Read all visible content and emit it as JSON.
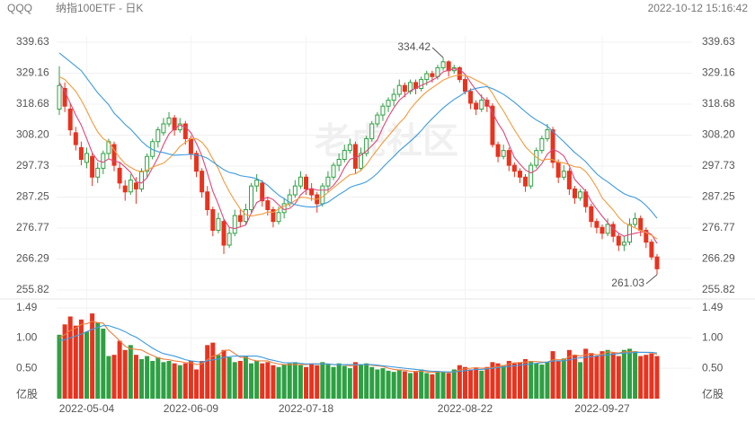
{
  "header": {
    "symbol": "QQQ",
    "name": "纳指100ETF - 日K",
    "timestamp": "2022-10-12 15:16:42"
  },
  "watermark": "老虎社区",
  "chart_data": {
    "type": "candlestick",
    "categories": [
      null,
      null,
      null,
      null,
      null,
      "2022-05-04",
      null,
      null,
      null,
      null,
      null,
      null,
      null,
      null,
      null,
      null,
      null,
      null,
      null,
      null,
      null,
      null,
      null,
      null,
      "2022-06-09",
      null,
      null,
      null,
      null,
      null,
      null,
      null,
      null,
      null,
      null,
      null,
      null,
      null,
      null,
      null,
      null,
      null,
      null,
      null,
      null,
      "2022-07-18",
      null,
      null,
      null,
      null,
      null,
      null,
      null,
      null,
      null,
      null,
      null,
      null,
      null,
      null,
      null,
      null,
      null,
      null,
      null,
      null,
      null,
      null,
      null,
      null,
      null,
      null,
      null,
      null,
      "2022-08-22",
      null,
      null,
      null,
      null,
      null,
      null,
      null,
      null,
      null,
      null,
      null,
      null,
      null,
      null,
      null,
      null,
      null,
      null,
      null,
      null,
      null,
      null,
      null,
      null,
      "2022-09-27",
      null,
      null,
      null,
      null,
      null,
      null,
      null,
      null,
      null,
      null
    ],
    "open": [
      317,
      324,
      317,
      309,
      304,
      299,
      301,
      294,
      297,
      302,
      305,
      297,
      291,
      289,
      292,
      290,
      296,
      301,
      306,
      309,
      312,
      314,
      310,
      312,
      307,
      302,
      296,
      289,
      283,
      276,
      279,
      271,
      275,
      281,
      279,
      283,
      291,
      292,
      286,
      283,
      279,
      282,
      285,
      288,
      291,
      294,
      290,
      288,
      285,
      291,
      294,
      298,
      300,
      303,
      305,
      297,
      302,
      307,
      312,
      315,
      318,
      320,
      322,
      325,
      323,
      326,
      324,
      327,
      329,
      328,
      331,
      333,
      330,
      331,
      327,
      323,
      319,
      317,
      320,
      318,
      305,
      301,
      303,
      298,
      296,
      294,
      291,
      298,
      303,
      307,
      310,
      299,
      294,
      296,
      290,
      287,
      289,
      284,
      279,
      277,
      275,
      278,
      274,
      271,
      272,
      278,
      280,
      276,
      272,
      267
    ],
    "high": [
      331.5,
      326,
      319,
      311,
      306,
      304,
      302,
      299,
      303,
      307,
      306,
      299,
      293,
      295,
      294,
      297,
      302,
      307,
      311,
      314,
      316,
      315,
      314,
      313,
      308,
      303,
      297,
      291,
      284,
      282,
      280,
      277,
      283,
      283,
      285,
      292,
      295,
      293,
      287,
      284,
      284,
      287,
      290,
      293,
      296,
      295,
      292,
      289,
      292,
      296,
      299,
      302,
      305,
      307,
      306,
      304,
      308,
      313,
      316,
      319,
      321,
      324,
      327,
      326,
      327,
      327,
      328,
      330,
      330,
      332,
      334.42,
      333.5,
      332,
      331.5,
      328,
      324,
      320,
      322,
      321,
      319,
      306,
      305,
      304,
      299,
      297,
      295,
      299,
      304,
      308,
      312,
      311,
      300,
      298,
      297,
      291,
      290,
      290,
      285,
      280,
      278,
      280,
      279,
      275,
      274,
      280,
      282,
      281,
      277,
      273,
      268
    ],
    "low": [
      315,
      316,
      308,
      303,
      298,
      297,
      291,
      292,
      295,
      300,
      296,
      290,
      286,
      288,
      285,
      289,
      294,
      300,
      304,
      308,
      311,
      308,
      309,
      305,
      300,
      294,
      287,
      281,
      274,
      275,
      268,
      270,
      274,
      277,
      278,
      282,
      289,
      284,
      281,
      277,
      278,
      280,
      284,
      287,
      290,
      288,
      286,
      282,
      284,
      289,
      293,
      296,
      299,
      302,
      295,
      296,
      301,
      306,
      311,
      313,
      316,
      318,
      321,
      321,
      322,
      322,
      323,
      325,
      326,
      327,
      330,
      328,
      329,
      326,
      322,
      317,
      315,
      316,
      316,
      304,
      299,
      300,
      296,
      294,
      292,
      289,
      290,
      297,
      302,
      306,
      297,
      292,
      293,
      288,
      285,
      286,
      282,
      277,
      275,
      273,
      274,
      272,
      269,
      269,
      271,
      277,
      274,
      270,
      266,
      261.03
    ],
    "close": [
      325,
      318,
      310,
      305,
      300,
      302,
      294,
      297,
      302,
      306,
      298,
      292,
      289,
      293,
      290,
      296,
      301,
      306,
      310,
      312,
      314,
      310,
      312,
      307,
      302,
      296,
      289,
      283,
      276,
      280,
      271,
      275,
      281,
      279,
      283,
      291,
      293,
      286,
      283,
      279,
      282,
      285,
      288,
      291,
      294,
      290,
      288,
      285,
      291,
      294,
      298,
      300,
      303,
      305,
      297,
      302,
      307,
      312,
      315,
      318,
      320,
      322,
      325,
      323,
      326,
      324,
      327,
      329,
      328,
      331,
      333,
      330,
      331,
      327,
      323,
      319,
      317,
      320,
      318,
      305,
      301,
      303,
      298,
      296,
      294,
      291,
      298,
      303,
      307,
      310,
      299,
      294,
      296,
      290,
      287,
      289,
      284,
      279,
      277,
      275,
      278,
      274,
      271,
      272,
      278,
      280,
      276,
      272,
      267,
      263
    ],
    "up_color": "#2ea043",
    "down_color": "#e8331f",
    "ylim": [
      255.82,
      339.63
    ],
    "yticks": [
      255.82,
      266.29,
      276.77,
      287.25,
      297.73,
      {
        "value": 308.2,
        "label": "308.20"
      },
      318.68,
      329.16,
      339.63
    ],
    "grid": true,
    "ma_series": [
      {
        "color": "#e0457b",
        "values": [
          326,
          323,
          319,
          315,
          311.6,
          307,
          302.2,
          299.6,
          299,
          300.2,
          299.4,
          299,
          297.4,
          295.6,
          292.4,
          292,
          293.8,
          297.2,
          300.6,
          305,
          308.6,
          310.4,
          311.6,
          311,
          309,
          305.4,
          301.2,
          295.4,
          289.2,
          284.8,
          279.8,
          277,
          276.6,
          277.2,
          277.8,
          281.8,
          285.4,
          286.4,
          287.2,
          286.4,
          284.6,
          283,
          283.4,
          285,
          288,
          289.6,
          290.2,
          289.6,
          289.6,
          289.6,
          291.2,
          293.6,
          297.2,
          300,
          300.6,
          301.4,
          302.8,
          304.6,
          306.6,
          310.8,
          314.4,
          317.4,
          320,
          321.6,
          323.2,
          324,
          325,
          325.8,
          326.8,
          327.8,
          329.6,
          330.2,
          330.6,
          330.4,
          328.8,
          326,
          323.4,
          321.2,
          319.4,
          315.8,
          312.2,
          309.4,
          305,
          300.6,
          298.4,
          296.4,
          295.4,
          296.4,
          298.6,
          301.8,
          303.4,
          302.6,
          301.2,
          297.8,
          293.2,
          291.2,
          289.2,
          285.8,
          283.2,
          280.8,
          278.6,
          276.6,
          275,
          274,
          274.6,
          275,
          275.4,
          275.6,
          274.6,
          271.6
        ]
      },
      {
        "color": "#f59a3c",
        "values": [
          328,
          327,
          325,
          323,
          320,
          316.5,
          312.6,
          309.3,
          307,
          305.9,
          303.2,
          300.6,
          298.5,
          297.3,
          296.3,
          295.7,
          296.4,
          297.3,
          298.1,
          298.7,
          300.3,
          302.1,
          304.4,
          305.8,
          307,
          307,
          305.8,
          303.5,
          300.1,
          296.9,
          292.6,
          289.1,
          286,
          283.2,
          281.3,
          280.8,
          281.2,
          281.5,
          282.2,
          282.1,
          283.2,
          284.2,
          284.9,
          286.1,
          287.2,
          287.1,
          286.6,
          286.5,
          287.3,
          288.8,
          290.4,
          291.9,
          293.4,
          294.8,
          295.1,
          296.3,
          298.2,
          300.9,
          303.3,
          305.7,
          307.9,
          310.1,
          312.3,
          314.1,
          317,
          319.2,
          321.2,
          322.9,
          324.2,
          325.5,
          326.8,
          327.6,
          328.2,
          328.6,
          328.3,
          327.8,
          326.8,
          325.9,
          324.9,
          322.3,
          319.1,
          316.4,
          313.1,
          310,
          307.1,
          304.3,
          302.4,
          300.7,
          299.6,
          300.1,
          299.9,
          299,
          298.8,
          298.2,
          297.5,
          297.3,
          295.9,
          293.5,
          290.5,
          287,
          284.9,
          282.9,
          280.4,
          278.6,
          277.7,
          276.8,
          276,
          275.3,
          274.3,
          273.1
        ]
      },
      {
        "color": "#3d9be0",
        "values": [
          336,
          334.5,
          333,
          331.5,
          330,
          327.5,
          325,
          322.5,
          320.5,
          318.5,
          315.6,
          313.8,
          311.8,
          310.2,
          308.2,
          306.1,
          304.5,
          303.3,
          302.6,
          302.3,
          301.8,
          301.4,
          301.5,
          301.6,
          301.7,
          301.4,
          301.1,
          300.4,
          299.1,
          297.8,
          296.5,
          295.6,
          295.2,
          294.5,
          294.2,
          293.9,
          293.5,
          292.5,
          291.2,
          289.5,
          287.9,
          286.7,
          285.5,
          284.7,
          284.3,
          284,
          283.9,
          284,
          284.8,
          285.5,
          286.8,
          288.1,
          289.2,
          290.5,
          291.2,
          291.7,
          292.4,
          293.7,
          295.3,
          297.3,
          299.2,
          301,
          302.9,
          304.5,
          306.1,
          307.8,
          309.7,
          311.9,
          313.8,
          315.6,
          317.4,
          318.9,
          320.3,
          321.4,
          322.7,
          323.5,
          324,
          324.4,
          324.6,
          323.9,
          323,
          322,
          320.7,
          319.3,
          317.7,
          316.1,
          314.6,
          313.3,
          312.3,
          311.2,
          309.5,
          307.7,
          306,
          304.1,
          302.3,
          300.8,
          299.2,
          297.1,
          295.1,
          293.6,
          292.4,
          291,
          289.6,
          288.4,
          287.6,
          287.1,
          286,
          284.4,
          282.4,
          280.1
        ]
      }
    ],
    "volume": {
      "unit": "亿股",
      "values": [
        1.05,
        1.22,
        1.35,
        1.2,
        1.3,
        1.1,
        1.4,
        1.25,
        1.15,
        0.7,
        0.72,
        0.95,
        0.8,
        0.88,
        0.72,
        0.65,
        0.7,
        0.62,
        0.68,
        0.6,
        0.62,
        0.58,
        0.55,
        0.58,
        0.62,
        0.48,
        0.62,
        0.88,
        0.92,
        0.72,
        0.8,
        0.68,
        0.6,
        0.62,
        0.7,
        0.58,
        0.62,
        0.58,
        0.6,
        0.55,
        0.52,
        0.56,
        0.58,
        0.6,
        0.55,
        0.52,
        0.58,
        0.55,
        0.6,
        0.56,
        0.52,
        0.58,
        0.54,
        0.5,
        0.6,
        0.56,
        0.58,
        0.52,
        0.48,
        0.5,
        0.46,
        0.44,
        0.48,
        0.45,
        0.42,
        0.44,
        0.48,
        0.42,
        0.4,
        0.44,
        0.45,
        0.42,
        0.48,
        0.55,
        0.52,
        0.48,
        0.5,
        0.46,
        0.52,
        0.6,
        0.58,
        0.55,
        0.62,
        0.58,
        0.6,
        0.65,
        0.62,
        0.58,
        0.56,
        0.6,
        0.78,
        0.62,
        0.66,
        0.8,
        0.72,
        0.6,
        0.82,
        0.75,
        0.7,
        0.78,
        0.8,
        0.75,
        0.7,
        0.8,
        0.82,
        0.78,
        0.7,
        0.72,
        0.74,
        0.7
      ],
      "ylim": [
        0,
        1.49
      ],
      "yticks": [
        {
          "value": 0.5,
          "label": "0.50"
        },
        {
          "value": 1,
          "label": "1.00"
        },
        1.49
      ],
      "ma_series": [
        {
          "color": "#f07c3c",
          "values": [
            1,
            1.05,
            1.12,
            1.16,
            1.22,
            1.23,
            1.27,
            1.25,
            1.24,
            1.12,
            1.04,
            0.95,
            0.86,
            0.82,
            0.81,
            0.8,
            0.75,
            0.71,
            0.67,
            0.65,
            0.64,
            0.62,
            0.61,
            0.59,
            0.59,
            0.56,
            0.57,
            0.64,
            0.7,
            0.72,
            0.79,
            0.8,
            0.74,
            0.68,
            0.68,
            0.64,
            0.62,
            0.62,
            0.62,
            0.59,
            0.57,
            0.56,
            0.56,
            0.56,
            0.56,
            0.56,
            0.57,
            0.57,
            0.57,
            0.57,
            0.56,
            0.56,
            0.56,
            0.54,
            0.55,
            0.56,
            0.56,
            0.55,
            0.54,
            0.53,
            0.5,
            0.48,
            0.47,
            0.47,
            0.45,
            0.45,
            0.45,
            0.44,
            0.43,
            0.44,
            0.44,
            0.43,
            0.44,
            0.47,
            0.49,
            0.5,
            0.51,
            0.5,
            0.5,
            0.51,
            0.53,
            0.54,
            0.57,
            0.59,
            0.59,
            0.6,
            0.61,
            0.61,
            0.6,
            0.6,
            0.64,
            0.64,
            0.64,
            0.69,
            0.72,
            0.7,
            0.72,
            0.74,
            0.72,
            0.73,
            0.77,
            0.76,
            0.75,
            0.77,
            0.77,
            0.77,
            0.76,
            0.76,
            0.75,
            0.73
          ]
        },
        {
          "color": "#3d9be0",
          "values": [
            0.95,
            0.97,
            1,
            1.03,
            1.06,
            1.1,
            1.14,
            1.17,
            1.2,
            1.2,
            1.17,
            1.14,
            1.1,
            1.05,
            1.01,
            0.95,
            0.89,
            0.83,
            0.78,
            0.74,
            0.72,
            0.7,
            0.67,
            0.64,
            0.62,
            0.61,
            0.6,
            0.62,
            0.64,
            0.65,
            0.68,
            0.69,
            0.7,
            0.7,
            0.7,
            0.7,
            0.7,
            0.68,
            0.65,
            0.63,
            0.61,
            0.59,
            0.59,
            0.59,
            0.58,
            0.57,
            0.57,
            0.57,
            0.57,
            0.57,
            0.56,
            0.56,
            0.56,
            0.56,
            0.56,
            0.56,
            0.56,
            0.56,
            0.55,
            0.54,
            0.53,
            0.52,
            0.51,
            0.5,
            0.49,
            0.48,
            0.47,
            0.46,
            0.45,
            0.45,
            0.44,
            0.44,
            0.44,
            0.45,
            0.46,
            0.47,
            0.48,
            0.48,
            0.49,
            0.5,
            0.51,
            0.52,
            0.53,
            0.54,
            0.55,
            0.56,
            0.57,
            0.58,
            0.59,
            0.6,
            0.62,
            0.62,
            0.62,
            0.64,
            0.66,
            0.67,
            0.68,
            0.69,
            0.7,
            0.71,
            0.72,
            0.73,
            0.74,
            0.75,
            0.75,
            0.76,
            0.76,
            0.76,
            0.76,
            0.75
          ]
        }
      ]
    }
  }
}
